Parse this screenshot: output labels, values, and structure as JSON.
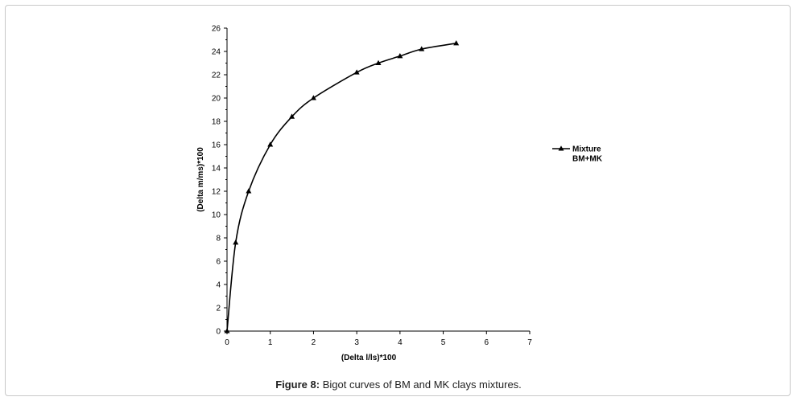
{
  "caption": {
    "label": "Figure 8:",
    "text": " Bigot curves of BM and MK clays mixtures."
  },
  "chart_data": {
    "type": "line",
    "xlabel": "(Delta l/ls)*100",
    "ylabel": "(Delta m/ms)*100",
    "xlim": [
      0,
      7
    ],
    "ylim": [
      0,
      26
    ],
    "x_ticks": [
      0,
      1,
      2,
      3,
      4,
      5,
      6,
      7
    ],
    "y_ticks": [
      0,
      2,
      4,
      6,
      8,
      10,
      12,
      14,
      16,
      18,
      20,
      22,
      24,
      26
    ],
    "grid": false,
    "legend_position": "right",
    "series": [
      {
        "name": "Mixture BM+MK",
        "legend_lines": [
          "Mixture",
          "BM+MK"
        ],
        "marker": "triangle",
        "color": "#000000",
        "x": [
          0,
          0.2,
          0.5,
          1.0,
          1.5,
          2.0,
          3.0,
          3.5,
          4.0,
          4.5,
          5.3
        ],
        "y": [
          0,
          7.6,
          12.0,
          16.0,
          18.4,
          20.0,
          22.2,
          23.0,
          23.6,
          24.2,
          24.7
        ]
      }
    ]
  }
}
